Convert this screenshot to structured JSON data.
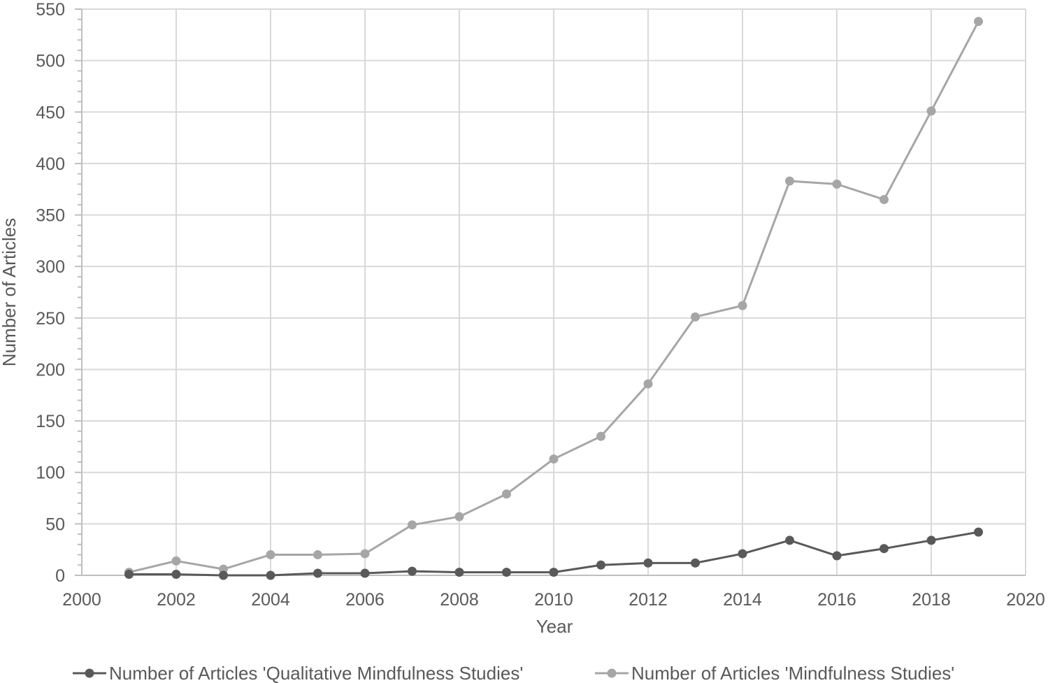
{
  "chart_data": {
    "type": "line",
    "title": "",
    "xlabel": "Year",
    "ylabel": "Number of Articles",
    "xlim": [
      2000,
      2020
    ],
    "ylim": [
      0,
      550
    ],
    "x_ticks": [
      2000,
      2002,
      2004,
      2006,
      2008,
      2010,
      2012,
      2014,
      2016,
      2018,
      2020
    ],
    "y_ticks": [
      0,
      50,
      100,
      150,
      200,
      250,
      300,
      350,
      400,
      450,
      500,
      550
    ],
    "grid": true,
    "legend_position": "bottom",
    "x": [
      2001,
      2002,
      2003,
      2004,
      2005,
      2006,
      2007,
      2008,
      2009,
      2010,
      2011,
      2012,
      2013,
      2014,
      2015,
      2016,
      2017,
      2018,
      2019
    ],
    "series": [
      {
        "name": "Number of Articles 'Qualitative Mindfulness Studies'",
        "color": "#595959",
        "values": [
          1,
          1,
          0,
          0,
          2,
          2,
          4,
          3,
          3,
          3,
          10,
          12,
          12,
          21,
          34,
          19,
          26,
          34,
          42
        ]
      },
      {
        "name": "Number of Articles 'Mindfulness Studies'",
        "color": "#a6a6a6",
        "values": [
          3,
          14,
          6,
          20,
          20,
          21,
          49,
          57,
          79,
          113,
          135,
          186,
          251,
          262,
          383,
          380,
          365,
          451,
          538
        ]
      }
    ]
  },
  "colors": {
    "gridline": "#d9d9d9",
    "axis": "#bfbfbf",
    "text": "#595959"
  }
}
